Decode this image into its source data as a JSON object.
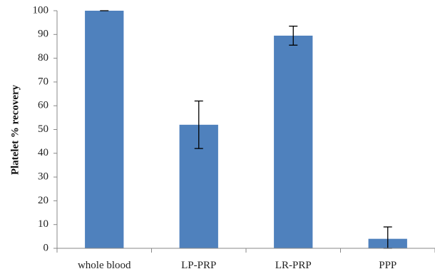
{
  "chart_data": {
    "type": "bar",
    "categories": [
      "whole blood",
      "LP-PRP",
      "LR-PRP",
      "PPP"
    ],
    "values": [
      100,
      52,
      89.5,
      4
    ],
    "error": [
      0,
      10,
      4,
      5
    ],
    "title": "",
    "xlabel": "",
    "ylabel": "Platelet % recovery",
    "ylim": [
      0,
      100
    ],
    "yticks": [
      0,
      10,
      20,
      30,
      40,
      50,
      60,
      70,
      80,
      90,
      100
    ],
    "grid": false,
    "bar_color": "#4F81BD",
    "errorbar_color": "#000000"
  }
}
